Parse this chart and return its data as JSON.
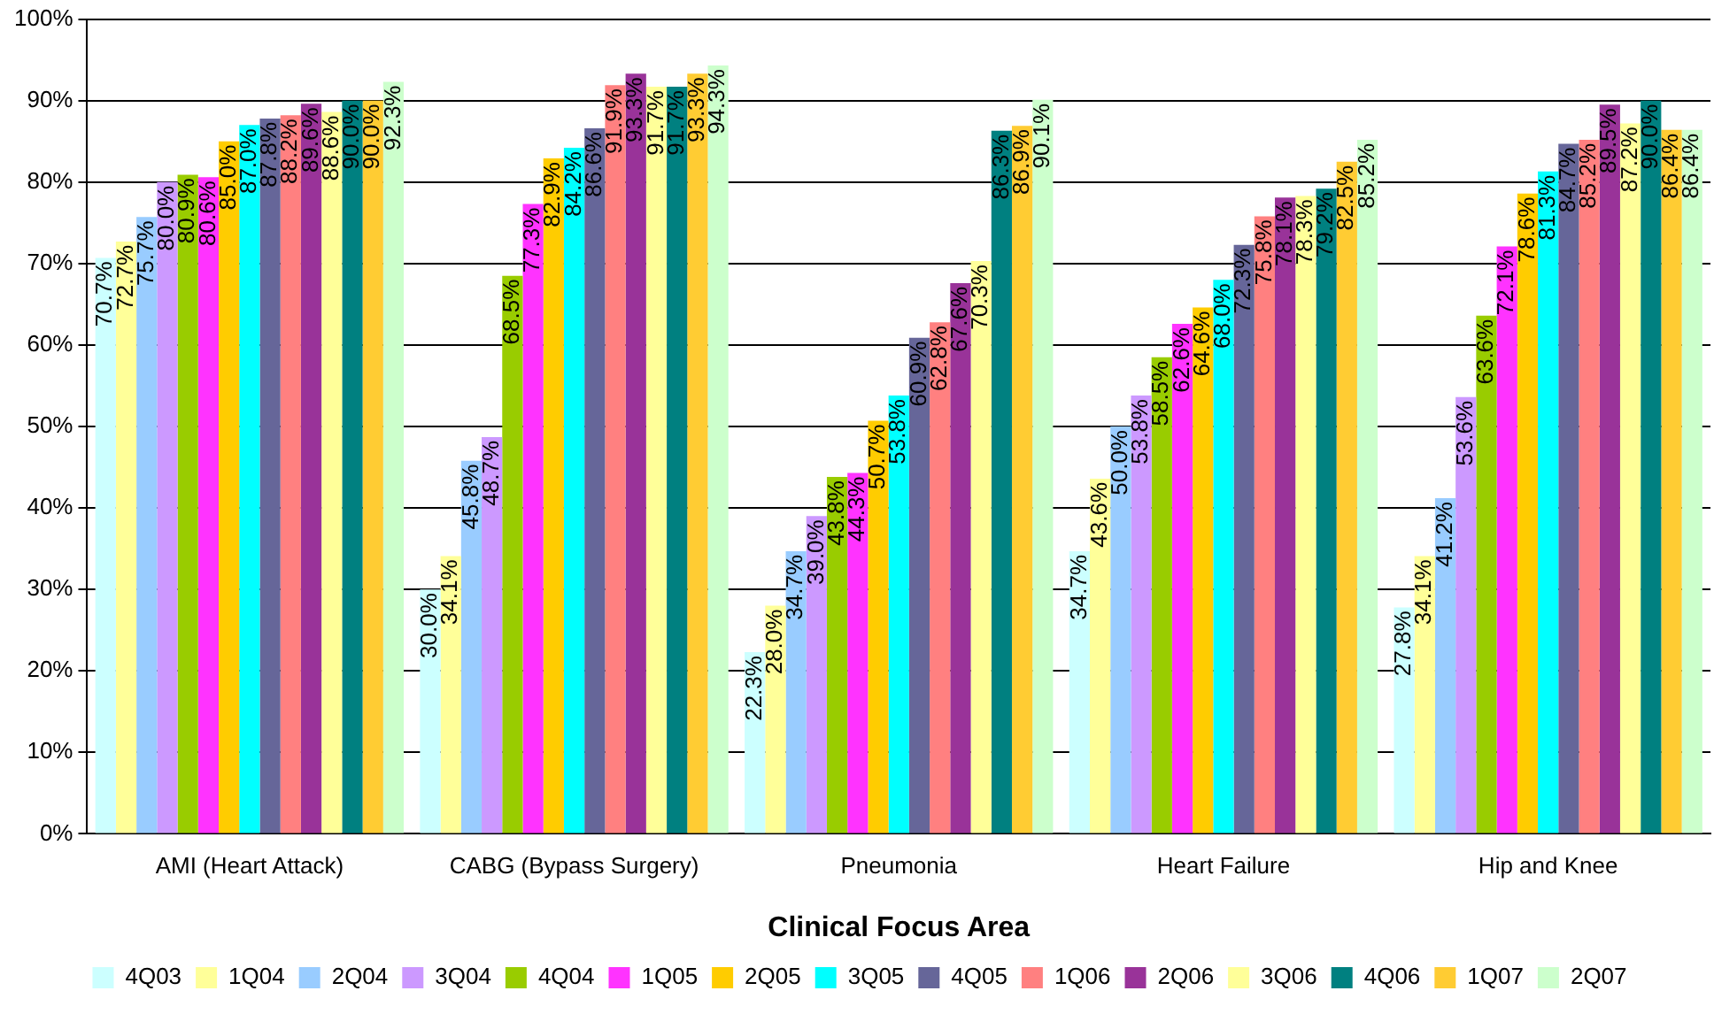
{
  "chart_data": {
    "type": "bar",
    "xlabel": "Clinical Focus Area",
    "categories": [
      "AMI (Heart Attack)",
      "CABG (Bypass Surgery)",
      "Pneumonia",
      "Heart Failure",
      "Hip and Knee"
    ],
    "ylim": [
      0,
      100
    ],
    "yticks": [
      {
        "value": 0,
        "label": "0%"
      },
      {
        "value": 10,
        "label": "10%"
      },
      {
        "value": 20,
        "label": "20%"
      },
      {
        "value": 30,
        "label": "30%"
      },
      {
        "value": 40,
        "label": "40%"
      },
      {
        "value": 50,
        "label": "50%"
      },
      {
        "value": 60,
        "label": "60%"
      },
      {
        "value": 70,
        "label": "70%"
      },
      {
        "value": 80,
        "label": "80%"
      },
      {
        "value": 90,
        "label": "90%"
      },
      {
        "value": 100,
        "label": "100%"
      }
    ],
    "grid": "y",
    "legend": "bottom",
    "series": [
      {
        "name": "4Q03",
        "color": "#ccffff",
        "values": [
          70.7,
          30.0,
          22.3,
          34.7,
          27.8
        ],
        "value_labels": [
          "70.7%",
          "30.0%",
          "22.3%",
          "34.7%",
          "27.8%"
        ]
      },
      {
        "name": "1Q04",
        "color": "#ffff99",
        "values": [
          72.7,
          34.1,
          28.0,
          43.6,
          34.1
        ],
        "value_labels": [
          "72.7%",
          "34.1%",
          "28.0%",
          "43.6%",
          "34.1%"
        ]
      },
      {
        "name": "2Q04",
        "color": "#99ccff",
        "values": [
          75.7,
          45.8,
          34.7,
          50.0,
          41.2
        ],
        "value_labels": [
          "75.7%",
          "45.8%",
          "34.7%",
          "50.0%",
          "41.2%"
        ]
      },
      {
        "name": "3Q04",
        "color": "#cc99ff",
        "values": [
          80.0,
          48.7,
          39.0,
          53.8,
          53.6
        ],
        "value_labels": [
          "80.0%",
          "48.7%",
          "39.0%",
          "53.8%",
          "53.6%"
        ]
      },
      {
        "name": "4Q04",
        "color": "#99cc00",
        "values": [
          80.9,
          68.5,
          43.8,
          58.5,
          63.6
        ],
        "value_labels": [
          "80.9%",
          "68.5%",
          "43.8%",
          "58.5%",
          "63.6%"
        ]
      },
      {
        "name": "1Q05",
        "color": "#ff33ff",
        "values": [
          80.6,
          77.3,
          44.3,
          62.6,
          72.1
        ],
        "value_labels": [
          "80.6%",
          "77.3%",
          "44.3%",
          "62.6%",
          "72.1%"
        ]
      },
      {
        "name": "2Q05",
        "color": "#ffcc00",
        "values": [
          85.0,
          82.9,
          50.7,
          64.6,
          78.6
        ],
        "value_labels": [
          "85.0%",
          "82.9%",
          "50.7%",
          "64.6%",
          "78.6%"
        ]
      },
      {
        "name": "3Q05",
        "color": "#00ffff",
        "values": [
          87.0,
          84.2,
          53.8,
          68.0,
          81.3
        ],
        "value_labels": [
          "87.0%",
          "84.2%",
          "53.8%",
          "68.0%",
          "81.3%"
        ]
      },
      {
        "name": "4Q05",
        "color": "#666699",
        "values": [
          87.8,
          86.6,
          60.9,
          72.3,
          84.7
        ],
        "value_labels": [
          "87.8%",
          "86.6%",
          "60.9%",
          "72.3%",
          "84.7%"
        ]
      },
      {
        "name": "1Q06",
        "color": "#ff8080",
        "values": [
          88.2,
          91.9,
          62.8,
          75.8,
          85.2
        ],
        "value_labels": [
          "88.2%",
          "91.9%",
          "62.8%",
          "75.8%",
          "85.2%"
        ]
      },
      {
        "name": "2Q06",
        "color": "#993399",
        "values": [
          89.6,
          93.3,
          67.6,
          78.1,
          89.5
        ],
        "value_labels": [
          "89.6%",
          "93.3%",
          "67.6%",
          "78.1%",
          "89.5%"
        ]
      },
      {
        "name": "3Q06",
        "color": "#ffff99",
        "values": [
          88.6,
          91.7,
          70.3,
          78.3,
          87.2
        ],
        "value_labels": [
          "88.6%",
          "91.7%",
          "70.3%",
          "78.3%",
          "87.2%"
        ]
      },
      {
        "name": "4Q06",
        "color": "#008080",
        "values": [
          90.0,
          91.7,
          86.3,
          79.2,
          90.0
        ],
        "value_labels": [
          "90.0%",
          "91.7%",
          "86.3%",
          "79.2%",
          "90.0%"
        ]
      },
      {
        "name": "1Q07",
        "color": "#ffcc33",
        "values": [
          90.0,
          93.3,
          86.9,
          82.5,
          86.4
        ],
        "value_labels": [
          "90.0%",
          "93.3%",
          "86.9%",
          "82.5%",
          "86.4%"
        ]
      },
      {
        "name": "2Q07",
        "color": "#ccffcc",
        "values": [
          92.3,
          94.3,
          90.1,
          85.2,
          86.4
        ],
        "value_labels": [
          "92.3%",
          "94.3%",
          "90.1%",
          "85.2%",
          "86.4%"
        ]
      }
    ]
  }
}
